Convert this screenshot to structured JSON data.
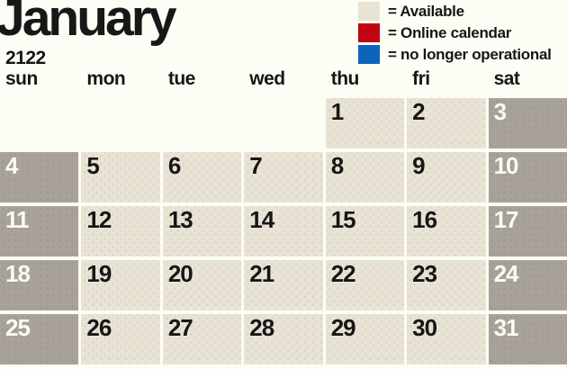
{
  "title": {
    "month": "January",
    "year": "2122"
  },
  "legend": {
    "items": [
      {
        "name": "available",
        "label": "= Available",
        "color": "#e9e3d6"
      },
      {
        "name": "online-calendar",
        "label": "= Online calendar",
        "color": "#c00511"
      },
      {
        "name": "no-longer-operational",
        "label": "= no longer operational",
        "color": "#0e64ba"
      }
    ]
  },
  "calendar": {
    "day_headers": [
      "sun",
      "mon",
      "tue",
      "wed",
      "thu",
      "fri",
      "sat"
    ],
    "weeks": [
      [
        null,
        null,
        null,
        null,
        "1",
        "2",
        "3"
      ],
      [
        "4",
        "5",
        "6",
        "7",
        "8",
        "9",
        "10"
      ],
      [
        "11",
        "12",
        "13",
        "14",
        "15",
        "16",
        "17"
      ],
      [
        "18",
        "19",
        "20",
        "21",
        "22",
        "23",
        "24"
      ],
      [
        "25",
        "26",
        "27",
        "28",
        "29",
        "30",
        "31"
      ]
    ],
    "weekend_columns": [
      0,
      6
    ]
  },
  "colors": {
    "background": "#fcfef5",
    "available_cell": "#e9e3d6",
    "weekend_cell": "#a8a29a",
    "available_number": "#161616",
    "weekend_number": "#fbfbf2"
  }
}
